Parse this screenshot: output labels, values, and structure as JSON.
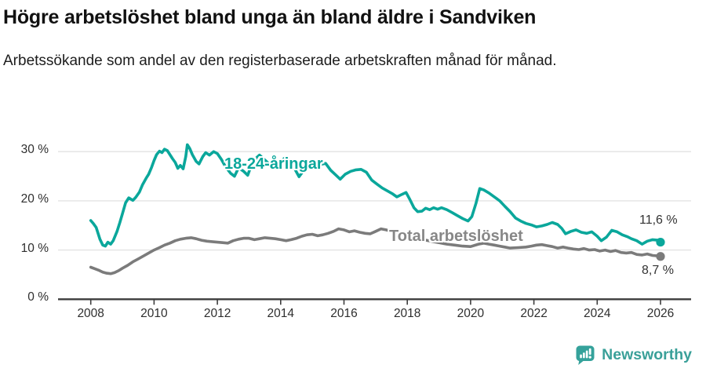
{
  "header": {
    "title": "Högre arbetslöshet bland unga än bland äldre i Sandviken",
    "subtitle": "Arbetssökande som andel av den registerbaserade arbetskraften månad för månad."
  },
  "chart_data": {
    "type": "line",
    "title": "Högre arbetslöshet bland unga än bland äldre i Sandviken",
    "subtitle": "Arbetssökande som andel av den registerbaserade arbetskraften månad för månad.",
    "xlabel": "",
    "ylabel": "",
    "xlim": [
      2007.6,
      2026.9
    ],
    "ylim": [
      0,
      33
    ],
    "grid": "horizontal-light",
    "legend_position": "inline-labels-on-lines",
    "x_ticks": [
      2008,
      2010,
      2012,
      2014,
      2016,
      2018,
      2020,
      2022,
      2024,
      2026
    ],
    "y_ticks": [
      0,
      10,
      20,
      30
    ],
    "y_tick_labels": [
      "0 %",
      "10 %",
      "20 %",
      "30 %"
    ],
    "colors": {
      "young": "#0aa79b",
      "total": "#7b7b7b",
      "grid": "#e3e3e3",
      "axis": "#3d3d3d"
    },
    "series": [
      {
        "name": "18-24-åringar",
        "color": "#0aa79b",
        "end_label": "11,6 %",
        "end_value": 11.6,
        "points": [
          [
            2008.0,
            16.0
          ],
          [
            2008.08,
            15.4
          ],
          [
            2008.17,
            14.6
          ],
          [
            2008.29,
            12.2
          ],
          [
            2008.38,
            11.0
          ],
          [
            2008.46,
            10.8
          ],
          [
            2008.54,
            11.6
          ],
          [
            2008.63,
            11.2
          ],
          [
            2008.71,
            11.9
          ],
          [
            2008.83,
            13.8
          ],
          [
            2008.92,
            15.6
          ],
          [
            2009.0,
            17.4
          ],
          [
            2009.1,
            19.6
          ],
          [
            2009.2,
            20.6
          ],
          [
            2009.33,
            20.1
          ],
          [
            2009.42,
            20.7
          ],
          [
            2009.54,
            21.8
          ],
          [
            2009.63,
            23.2
          ],
          [
            2009.75,
            24.6
          ],
          [
            2009.83,
            25.4
          ],
          [
            2009.92,
            26.8
          ],
          [
            2010.0,
            28.2
          ],
          [
            2010.08,
            29.4
          ],
          [
            2010.17,
            30.1
          ],
          [
            2010.25,
            29.8
          ],
          [
            2010.33,
            30.5
          ],
          [
            2010.42,
            30.2
          ],
          [
            2010.5,
            29.4
          ],
          [
            2010.58,
            28.6
          ],
          [
            2010.67,
            27.8
          ],
          [
            2010.75,
            26.6
          ],
          [
            2010.83,
            27.2
          ],
          [
            2010.92,
            26.5
          ],
          [
            2011.0,
            29.0
          ],
          [
            2011.05,
            31.4
          ],
          [
            2011.13,
            30.6
          ],
          [
            2011.21,
            29.4
          ],
          [
            2011.33,
            28.0
          ],
          [
            2011.42,
            27.5
          ],
          [
            2011.54,
            29.0
          ],
          [
            2011.63,
            29.8
          ],
          [
            2011.75,
            29.3
          ],
          [
            2011.88,
            30.0
          ],
          [
            2012.0,
            29.6
          ],
          [
            2012.13,
            28.4
          ],
          [
            2012.25,
            27.0
          ],
          [
            2012.42,
            25.6
          ],
          [
            2012.54,
            25.0
          ],
          [
            2012.67,
            26.7
          ],
          [
            2012.83,
            26.0
          ],
          [
            2012.96,
            25.2
          ],
          [
            2013.08,
            27.4
          ],
          [
            2013.21,
            28.6
          ],
          [
            2013.33,
            29.3
          ],
          [
            2013.5,
            28.3
          ],
          [
            2013.67,
            27.3
          ],
          [
            2013.83,
            27.7
          ],
          [
            2014.0,
            28.0
          ],
          [
            2014.17,
            28.9
          ],
          [
            2014.33,
            27.6
          ],
          [
            2014.46,
            26.3
          ],
          [
            2014.58,
            24.9
          ],
          [
            2014.75,
            26.4
          ],
          [
            2014.92,
            27.2
          ],
          [
            2015.08,
            27.0
          ],
          [
            2015.25,
            27.4
          ],
          [
            2015.42,
            27.6
          ],
          [
            2015.58,
            26.2
          ],
          [
            2015.75,
            25.2
          ],
          [
            2015.88,
            24.4
          ],
          [
            2016.04,
            25.4
          ],
          [
            2016.21,
            26.0
          ],
          [
            2016.38,
            26.3
          ],
          [
            2016.54,
            26.4
          ],
          [
            2016.71,
            25.8
          ],
          [
            2016.88,
            24.2
          ],
          [
            2017.04,
            23.4
          ],
          [
            2017.21,
            22.6
          ],
          [
            2017.38,
            22.0
          ],
          [
            2017.54,
            21.4
          ],
          [
            2017.67,
            20.8
          ],
          [
            2017.83,
            21.3
          ],
          [
            2017.96,
            21.7
          ],
          [
            2018.08,
            20.3
          ],
          [
            2018.21,
            18.6
          ],
          [
            2018.33,
            17.8
          ],
          [
            2018.46,
            17.9
          ],
          [
            2018.58,
            18.5
          ],
          [
            2018.71,
            18.2
          ],
          [
            2018.83,
            18.6
          ],
          [
            2018.96,
            18.3
          ],
          [
            2019.08,
            18.6
          ],
          [
            2019.25,
            18.2
          ],
          [
            2019.42,
            17.6
          ],
          [
            2019.58,
            17.0
          ],
          [
            2019.75,
            16.4
          ],
          [
            2019.92,
            15.9
          ],
          [
            2020.04,
            16.8
          ],
          [
            2020.17,
            19.5
          ],
          [
            2020.29,
            22.5
          ],
          [
            2020.42,
            22.2
          ],
          [
            2020.58,
            21.6
          ],
          [
            2020.75,
            20.8
          ],
          [
            2020.92,
            20.0
          ],
          [
            2021.08,
            18.9
          ],
          [
            2021.25,
            17.8
          ],
          [
            2021.42,
            16.5
          ],
          [
            2021.58,
            15.9
          ],
          [
            2021.75,
            15.4
          ],
          [
            2021.92,
            15.1
          ],
          [
            2022.08,
            14.7
          ],
          [
            2022.25,
            14.9
          ],
          [
            2022.42,
            15.2
          ],
          [
            2022.58,
            15.6
          ],
          [
            2022.75,
            15.2
          ],
          [
            2022.88,
            14.4
          ],
          [
            2023.0,
            13.3
          ],
          [
            2023.17,
            13.8
          ],
          [
            2023.33,
            14.1
          ],
          [
            2023.5,
            13.6
          ],
          [
            2023.67,
            13.4
          ],
          [
            2023.83,
            13.7
          ],
          [
            2024.0,
            12.8
          ],
          [
            2024.13,
            11.9
          ],
          [
            2024.29,
            12.6
          ],
          [
            2024.46,
            14.0
          ],
          [
            2024.63,
            13.7
          ],
          [
            2024.79,
            13.1
          ],
          [
            2024.96,
            12.7
          ],
          [
            2025.08,
            12.3
          ],
          [
            2025.25,
            11.9
          ],
          [
            2025.42,
            11.2
          ],
          [
            2025.58,
            11.8
          ],
          [
            2025.75,
            12.1
          ],
          [
            2025.92,
            12.0
          ],
          [
            2026.0,
            11.6
          ]
        ]
      },
      {
        "name": "Total arbetslöshet",
        "color": "#7b7b7b",
        "end_label": "8,7 %",
        "end_value": 8.7,
        "points": [
          [
            2008.0,
            6.5
          ],
          [
            2008.13,
            6.2
          ],
          [
            2008.25,
            5.9
          ],
          [
            2008.38,
            5.5
          ],
          [
            2008.5,
            5.3
          ],
          [
            2008.63,
            5.2
          ],
          [
            2008.75,
            5.4
          ],
          [
            2008.88,
            5.8
          ],
          [
            2009.0,
            6.3
          ],
          [
            2009.17,
            6.9
          ],
          [
            2009.33,
            7.6
          ],
          [
            2009.5,
            8.2
          ],
          [
            2009.67,
            8.8
          ],
          [
            2009.83,
            9.4
          ],
          [
            2010.0,
            10.0
          ],
          [
            2010.17,
            10.5
          ],
          [
            2010.33,
            11.0
          ],
          [
            2010.5,
            11.4
          ],
          [
            2010.67,
            11.9
          ],
          [
            2010.83,
            12.2
          ],
          [
            2011.0,
            12.4
          ],
          [
            2011.17,
            12.5
          ],
          [
            2011.33,
            12.3
          ],
          [
            2011.5,
            12.0
          ],
          [
            2011.67,
            11.8
          ],
          [
            2011.83,
            11.7
          ],
          [
            2012.0,
            11.6
          ],
          [
            2012.17,
            11.5
          ],
          [
            2012.33,
            11.4
          ],
          [
            2012.5,
            11.9
          ],
          [
            2012.67,
            12.2
          ],
          [
            2012.83,
            12.4
          ],
          [
            2013.0,
            12.4
          ],
          [
            2013.17,
            12.1
          ],
          [
            2013.33,
            12.3
          ],
          [
            2013.5,
            12.5
          ],
          [
            2013.67,
            12.4
          ],
          [
            2013.83,
            12.3
          ],
          [
            2014.0,
            12.1
          ],
          [
            2014.17,
            11.9
          ],
          [
            2014.33,
            12.1
          ],
          [
            2014.5,
            12.4
          ],
          [
            2014.67,
            12.8
          ],
          [
            2014.83,
            13.1
          ],
          [
            2015.0,
            13.2
          ],
          [
            2015.17,
            12.9
          ],
          [
            2015.33,
            13.1
          ],
          [
            2015.5,
            13.4
          ],
          [
            2015.67,
            13.8
          ],
          [
            2015.83,
            14.3
          ],
          [
            2016.0,
            14.1
          ],
          [
            2016.17,
            13.7
          ],
          [
            2016.33,
            13.9
          ],
          [
            2016.5,
            13.6
          ],
          [
            2016.67,
            13.4
          ],
          [
            2016.83,
            13.3
          ],
          [
            2017.0,
            13.8
          ],
          [
            2017.17,
            14.3
          ],
          [
            2017.33,
            14.1
          ],
          [
            2017.5,
            13.8
          ],
          [
            2017.67,
            13.4
          ],
          [
            2017.83,
            13.1
          ],
          [
            2018.0,
            12.8
          ],
          [
            2018.25,
            12.4
          ],
          [
            2018.5,
            12.1
          ],
          [
            2018.75,
            11.8
          ],
          [
            2019.0,
            11.5
          ],
          [
            2019.25,
            11.2
          ],
          [
            2019.5,
            11.0
          ],
          [
            2019.75,
            10.8
          ],
          [
            2020.0,
            10.7
          ],
          [
            2020.25,
            11.2
          ],
          [
            2020.42,
            11.4
          ],
          [
            2020.58,
            11.2
          ],
          [
            2020.75,
            11.0
          ],
          [
            2020.92,
            10.8
          ],
          [
            2021.08,
            10.6
          ],
          [
            2021.25,
            10.4
          ],
          [
            2021.5,
            10.5
          ],
          [
            2021.75,
            10.6
          ],
          [
            2021.92,
            10.8
          ],
          [
            2022.08,
            11.0
          ],
          [
            2022.25,
            11.1
          ],
          [
            2022.42,
            10.9
          ],
          [
            2022.58,
            10.7
          ],
          [
            2022.75,
            10.4
          ],
          [
            2022.92,
            10.6
          ],
          [
            2023.08,
            10.4
          ],
          [
            2023.25,
            10.2
          ],
          [
            2023.42,
            10.1
          ],
          [
            2023.58,
            10.3
          ],
          [
            2023.75,
            10.0
          ],
          [
            2023.92,
            10.1
          ],
          [
            2024.08,
            9.8
          ],
          [
            2024.25,
            10.0
          ],
          [
            2024.42,
            9.7
          ],
          [
            2024.58,
            9.9
          ],
          [
            2024.75,
            9.5
          ],
          [
            2024.92,
            9.4
          ],
          [
            2025.08,
            9.5
          ],
          [
            2025.25,
            9.1
          ],
          [
            2025.42,
            9.0
          ],
          [
            2025.58,
            9.2
          ],
          [
            2025.75,
            8.9
          ],
          [
            2025.92,
            8.8
          ],
          [
            2026.0,
            8.7
          ]
        ]
      }
    ],
    "annotations": {
      "young_label": "18-24-åringar",
      "total_label": "Total arbetslöshet",
      "young_end_label": "11,6 %",
      "total_end_label": "8,7 %"
    }
  },
  "footer": {
    "brand": "Newsworthy",
    "brand_color": "#3aa099",
    "logo_icon": "speech-bubble-bar-chart-icon"
  }
}
